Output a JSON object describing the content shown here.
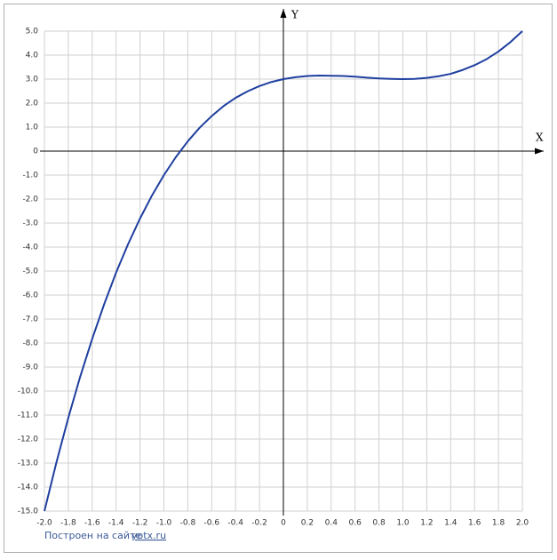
{
  "chart_data": {
    "type": "line",
    "x_label": "X",
    "y_label": "Y",
    "footer": "Построен на сайте",
    "footer_link": "yotx.ru",
    "x": [
      -2.0,
      -1.9,
      -1.8,
      -1.7,
      -1.6,
      -1.5,
      -1.4,
      -1.3,
      -1.2,
      -1.1,
      -1.0,
      -0.9,
      -0.8,
      -0.7,
      -0.6,
      -0.5,
      -0.4,
      -0.3,
      -0.2,
      -0.1,
      0,
      0.1,
      0.2,
      0.3,
      0.4,
      0.5,
      0.6,
      0.7,
      0.8,
      0.9,
      1.0,
      1.1,
      1.2,
      1.3,
      1.4,
      1.5,
      1.6,
      1.7,
      1.8,
      1.9,
      2.0
    ],
    "series": [
      {
        "color": "#1f3f9f",
        "values": [
          -15,
          -12.98,
          -11.11,
          -9.39,
          -7.82,
          -6.38,
          -5.06,
          -3.88,
          -2.81,
          -1.85,
          -1,
          -0.25,
          0.41,
          0.98,
          1.46,
          1.88,
          2.22,
          2.49,
          2.71,
          2.88,
          3,
          3.08,
          3.13,
          3.15,
          3.14,
          3.13,
          3.1,
          3.06,
          3.03,
          3.01,
          3,
          3.01,
          3.05,
          3.12,
          3.22,
          3.38,
          3.58,
          3.83,
          4.15,
          4.54,
          5
        ]
      }
    ],
    "xlim": [
      -2,
      2
    ],
    "ylim": [
      -15,
      5
    ],
    "xticks": [
      {
        "value": -2,
        "label": "-2.0"
      },
      -1.8,
      -1.6,
      -1.4,
      -1.2,
      {
        "value": -1,
        "label": "-1.0"
      },
      -0.8,
      -0.6,
      -0.4,
      -0.2,
      0,
      0.2,
      0.4,
      0.6,
      0.8,
      {
        "value": 1,
        "label": "1.0"
      },
      1.2,
      1.4,
      1.6,
      1.8,
      {
        "value": 2,
        "label": "2.0"
      }
    ],
    "yticks": [
      {
        "value": 5,
        "label": "5.0"
      },
      {
        "value": 4,
        "label": "4.0"
      },
      {
        "value": 3,
        "label": "3.0"
      },
      {
        "value": 2,
        "label": "2.0"
      },
      {
        "value": 1,
        "label": "1.0"
      },
      0,
      {
        "value": -1,
        "label": "-1.0"
      },
      {
        "value": -2,
        "label": "-2.0"
      },
      {
        "value": -3,
        "label": "-3.0"
      },
      {
        "value": -4,
        "label": "-4.0"
      },
      {
        "value": -5,
        "label": "-5.0"
      },
      {
        "value": -6,
        "label": "-6.0"
      },
      {
        "value": -7,
        "label": "-7.0"
      },
      {
        "value": -8,
        "label": "-8.0"
      },
      {
        "value": -9,
        "label": "-9.0"
      },
      {
        "value": -10,
        "label": "-10.0"
      },
      {
        "value": -11,
        "label": "-11.0"
      },
      {
        "value": -12,
        "label": "-12.0"
      },
      {
        "value": -13,
        "label": "-13.0"
      },
      {
        "value": -14,
        "label": "-14.0"
      },
      {
        "value": -15,
        "label": "-15.0"
      }
    ],
    "grid": true
  }
}
